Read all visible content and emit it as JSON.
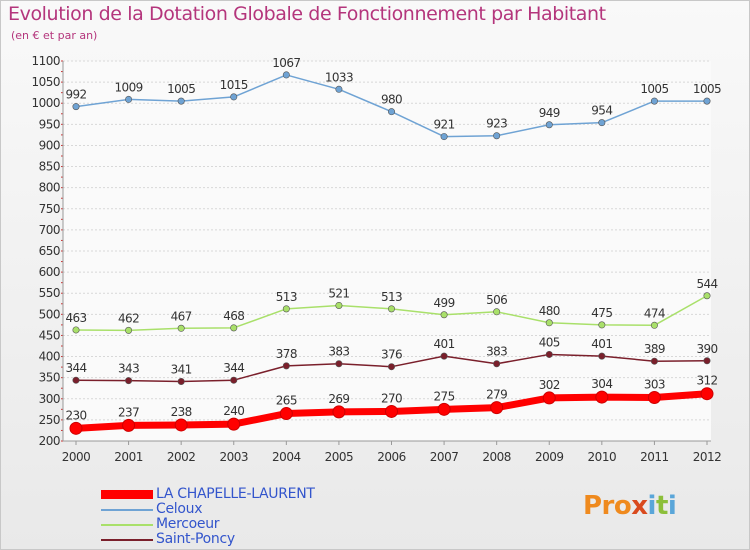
{
  "chart_data": {
    "type": "line",
    "title": "Evolution de la Dotation Globale de Fonctionnement par Habitant",
    "subtitle": "(en € et par an)",
    "xlabel": "",
    "ylabel": "",
    "ylim": [
      200,
      1100
    ],
    "yticks": [
      200,
      250,
      300,
      350,
      400,
      450,
      500,
      550,
      600,
      650,
      700,
      750,
      800,
      850,
      900,
      950,
      1000,
      1050,
      1100
    ],
    "categories": [
      "2000",
      "2001",
      "2002",
      "2003",
      "2004",
      "2005",
      "2006",
      "2007",
      "2008",
      "2009",
      "2010",
      "2011",
      "2012"
    ],
    "series": [
      {
        "name": "LA CHAPELLE-LAURENT",
        "color": "#ff0000",
        "values": [
          230,
          237,
          238,
          240,
          265,
          269,
          270,
          275,
          279,
          302,
          304,
          303,
          312
        ]
      },
      {
        "name": "Celoux",
        "color": "#6fa3d4",
        "values": [
          992,
          1009,
          1005,
          1015,
          1067,
          1033,
          980,
          921,
          923,
          949,
          954,
          1005,
          1005
        ]
      },
      {
        "name": "Mercoeur",
        "color": "#a9e06a",
        "values": [
          463,
          462,
          467,
          468,
          513,
          521,
          513,
          499,
          506,
          480,
          475,
          474,
          544
        ]
      },
      {
        "name": "Saint-Poncy",
        "color": "#7a1f2b",
        "values": [
          344,
          343,
          341,
          344,
          378,
          383,
          376,
          401,
          383,
          405,
          401,
          389,
          390
        ]
      }
    ]
  },
  "logo": {
    "p1": "Pro",
    "p2": "x",
    "p3": "i",
    "p4": "t",
    "p5": "i"
  }
}
